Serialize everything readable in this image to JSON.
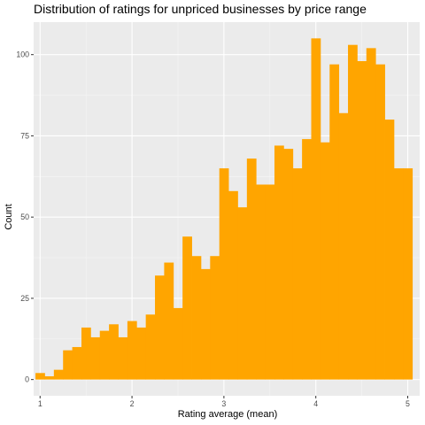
{
  "chart_data": {
    "type": "bar",
    "title": "Distribution of ratings for unpriced businesses by price range",
    "xlabel": "Rating average (mean)",
    "ylabel": "Count",
    "xlim": [
      0.93,
      5.13
    ],
    "ylim": [
      -5,
      110
    ],
    "x_ticks": [
      1,
      2,
      3,
      4,
      5
    ],
    "x_tick_labels": [
      "1",
      "2",
      "3",
      "4",
      "5"
    ],
    "y_ticks": [
      0,
      25,
      50,
      75,
      100
    ],
    "y_tick_labels": [
      "0",
      "25",
      "50",
      "75",
      "100"
    ],
    "bin_width": 0.1,
    "bin_centers": [
      1.0,
      1.1,
      1.2,
      1.3,
      1.4,
      1.5,
      1.6,
      1.7,
      1.8,
      1.9,
      2.0,
      2.1,
      2.2,
      2.3,
      2.4,
      2.5,
      2.6,
      2.7,
      2.8,
      2.9,
      3.0,
      3.1,
      3.2,
      3.3,
      3.4,
      3.5,
      3.6,
      3.7,
      3.8,
      3.9,
      4.0,
      4.1,
      4.2,
      4.3,
      4.4,
      4.5,
      4.6,
      4.7,
      4.8,
      4.9,
      5.0
    ],
    "values": [
      2,
      1,
      3,
      9,
      10,
      16,
      13,
      15,
      17,
      13,
      18,
      16,
      20,
      32,
      36,
      22,
      44,
      38,
      34,
      38,
      65,
      58,
      53,
      68,
      60,
      60,
      72,
      71,
      65,
      74,
      105,
      73,
      97,
      82,
      103,
      98,
      102,
      97,
      80,
      65,
      65
    ],
    "colors": {
      "fill": "#FFA500",
      "panel": "#EBEBEB",
      "grid_major": "#FFFFFF",
      "grid_minor": "#F5F5F5",
      "tick": "#333333"
    },
    "grid": true,
    "legend": "none"
  }
}
